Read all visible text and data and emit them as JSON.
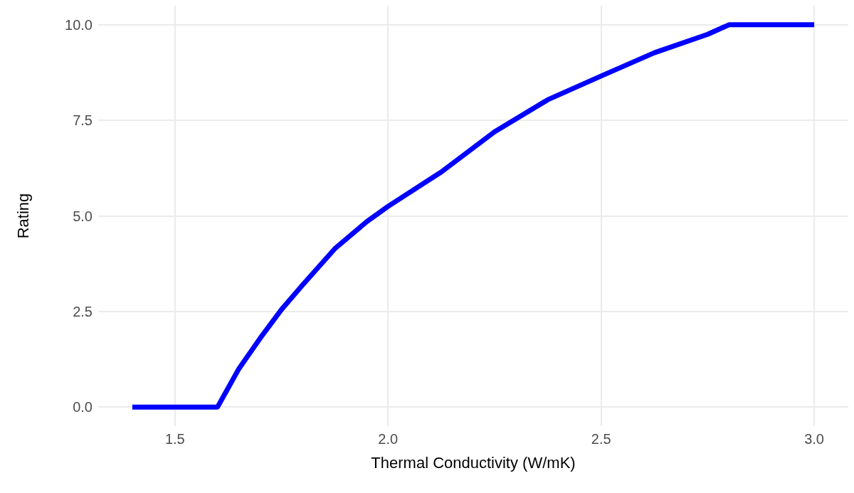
{
  "chart_data": {
    "type": "line",
    "xlabel": "Thermal Conductivity (W/mK)",
    "ylabel": "Rating",
    "x": [
      1.4,
      1.5,
      1.6,
      1.625,
      1.65,
      1.7,
      1.75,
      1.8,
      1.875,
      1.95,
      2.0,
      2.125,
      2.25,
      2.375,
      2.5,
      2.625,
      2.75,
      2.8,
      2.9,
      3.0
    ],
    "series": [
      {
        "color": "#0000ff",
        "values": [
          0,
          0,
          0,
          0.5,
          1.0,
          1.8,
          2.55,
          3.2,
          4.14,
          4.85,
          5.25,
          6.15,
          7.2,
          8.04,
          8.66,
          9.27,
          9.75,
          10,
          10,
          10
        ]
      }
    ],
    "xlim": [
      1.32,
      3.08
    ],
    "ylim": [
      -0.5,
      10.5
    ],
    "xticks": [
      1.5,
      {
        "value": 2,
        "label": "2.0"
      },
      2.5,
      {
        "value": 3,
        "label": "3.0"
      }
    ],
    "yticks": [
      {
        "value": 0,
        "label": "0.0"
      },
      {
        "value": 2.5,
        "label": "2.5"
      },
      {
        "value": 5,
        "label": "5.0"
      },
      {
        "value": 7.5,
        "label": "7.5"
      },
      {
        "value": 10,
        "label": "10.0"
      }
    ],
    "grid": true,
    "marker": "none",
    "line_style": "solid"
  }
}
